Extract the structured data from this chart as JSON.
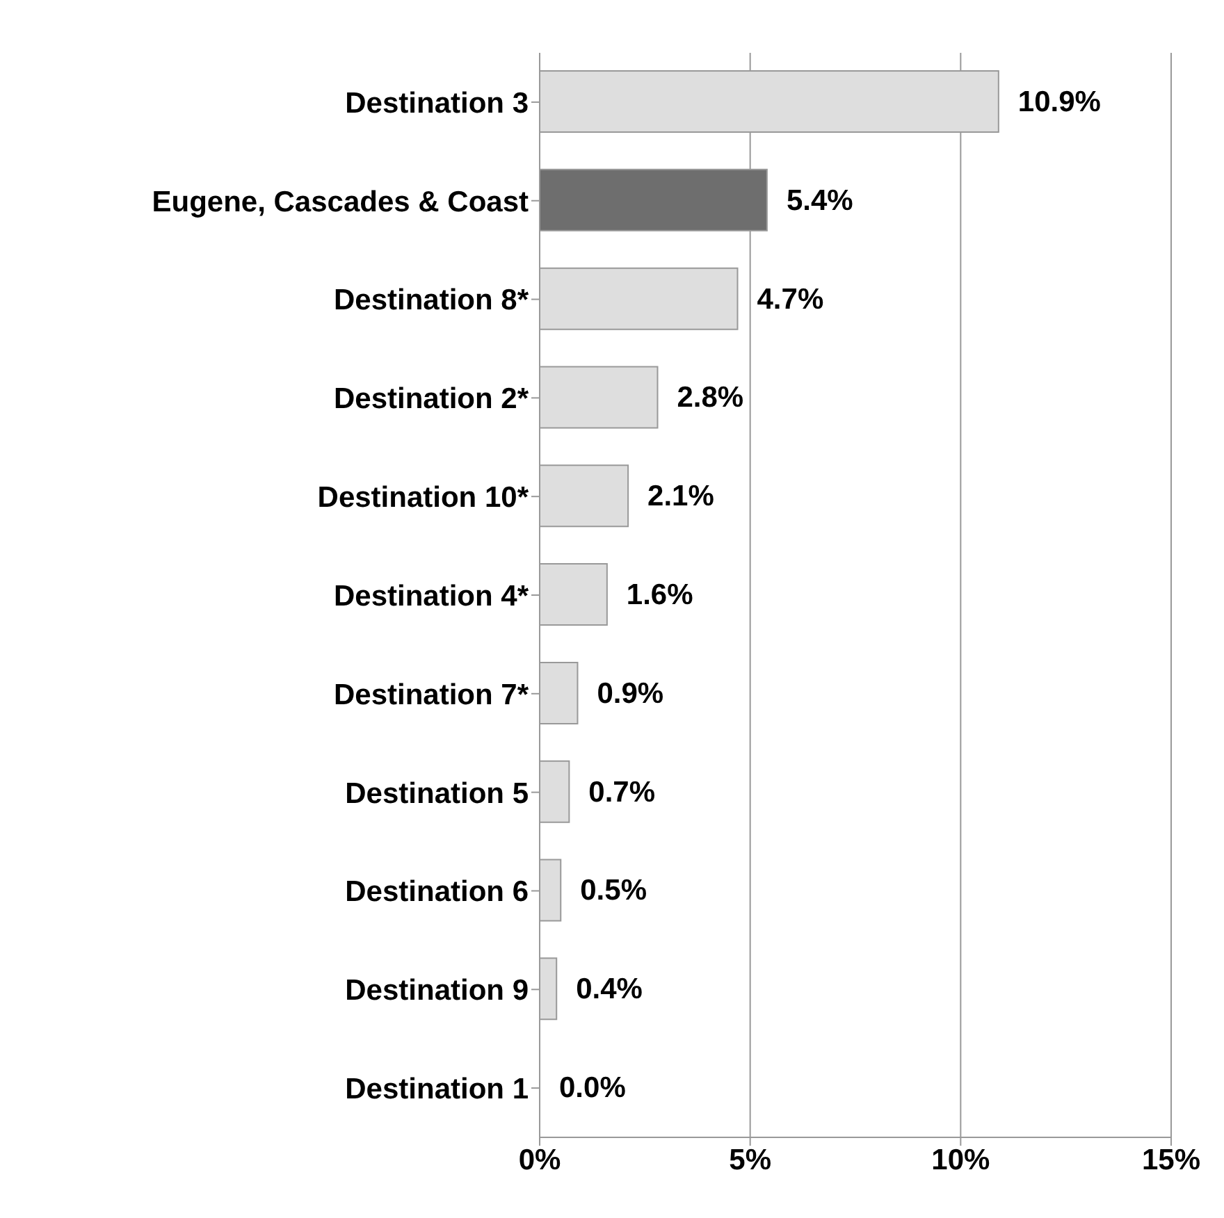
{
  "chart_data": {
    "type": "bar",
    "orientation": "horizontal",
    "categories": [
      "Destination 3",
      "Eugene, Cascades & Coast",
      "Destination 8*",
      "Destination 2*",
      "Destination 10*",
      "Destination 4*",
      "Destination 7*",
      "Destination 5",
      "Destination 6",
      "Destination 9",
      "Destination 1"
    ],
    "values": [
      10.9,
      5.4,
      4.7,
      2.8,
      2.1,
      1.6,
      0.9,
      0.7,
      0.5,
      0.4,
      0.0
    ],
    "colors": [
      "#dedede",
      "#6e6e6e",
      "#dedede",
      "#dedede",
      "#dedede",
      "#dedede",
      "#dedede",
      "#dedede",
      "#dedede",
      "#dedede",
      "#dedede"
    ],
    "value_labels": [
      "10.9%",
      "5.4%",
      "4.7%",
      "2.8%",
      "2.1%",
      "1.6%",
      "0.9%",
      "0.7%",
      "0.5%",
      "0.4%",
      "0.0%"
    ],
    "xlim": [
      0,
      15
    ],
    "xticks": [
      {
        "value": 0,
        "label": "0%"
      },
      {
        "value": 5,
        "label": "5%"
      },
      {
        "value": 10,
        "label": "10%"
      },
      {
        "value": 15,
        "label": "15%"
      }
    ],
    "grid": "x"
  }
}
